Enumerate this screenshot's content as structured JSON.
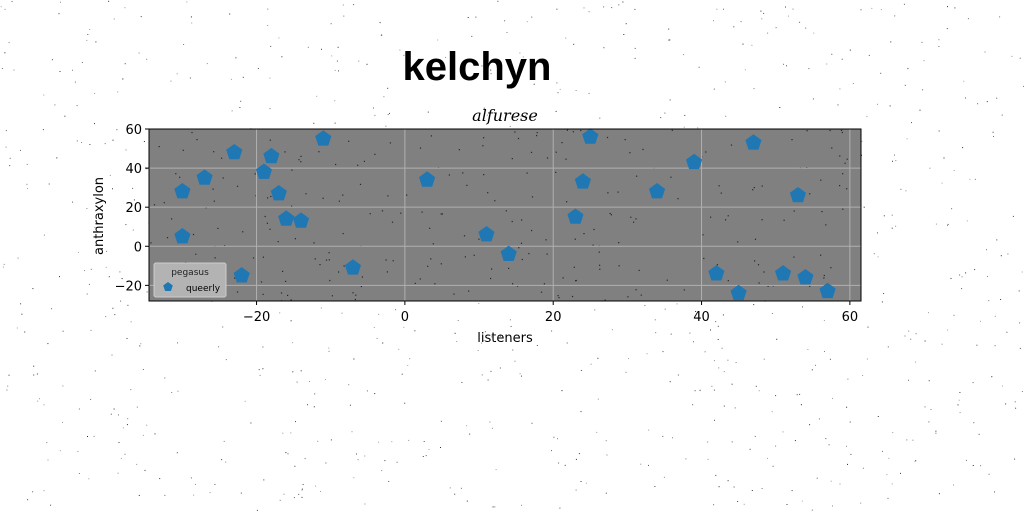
{
  "figure": {
    "title": "kelchyn"
  },
  "chart_data": {
    "type": "scatter",
    "title": "alfurese",
    "xlabel": "listeners",
    "ylabel": "anthraxylon",
    "xlim": [
      -34.5,
      61.5
    ],
    "ylim": [
      -28,
      60
    ],
    "xticks": [
      -20,
      0,
      20,
      40,
      60
    ],
    "yticks": [
      -20,
      0,
      20,
      40,
      60
    ],
    "xtick_labels": [
      "−20",
      "0",
      "20",
      "40",
      "60"
    ],
    "ytick_labels": [
      "−20",
      "0",
      "20",
      "40",
      "60"
    ],
    "grid": true,
    "background": "#808080",
    "legend": {
      "title": "pegasus",
      "position": "lower-left",
      "entries": [
        "queerly"
      ]
    },
    "series": [
      {
        "name": "queerly",
        "marker": "pentagon",
        "color": "#1f77b4",
        "x": [
          -30,
          -30,
          -27,
          -23,
          -22,
          -19,
          -18,
          -17,
          -16,
          -14,
          -11,
          -7,
          3,
          11,
          14,
          23,
          24,
          25,
          34,
          39,
          42,
          45,
          47,
          51,
          53,
          54,
          57
        ],
        "y": [
          28,
          5,
          35,
          48,
          -15,
          38,
          46,
          27,
          14,
          13,
          55,
          -11,
          34,
          6,
          -4,
          15,
          33,
          56,
          28,
          43,
          -14,
          -24,
          53,
          -14,
          26,
          -16,
          -23
        ]
      }
    ]
  }
}
